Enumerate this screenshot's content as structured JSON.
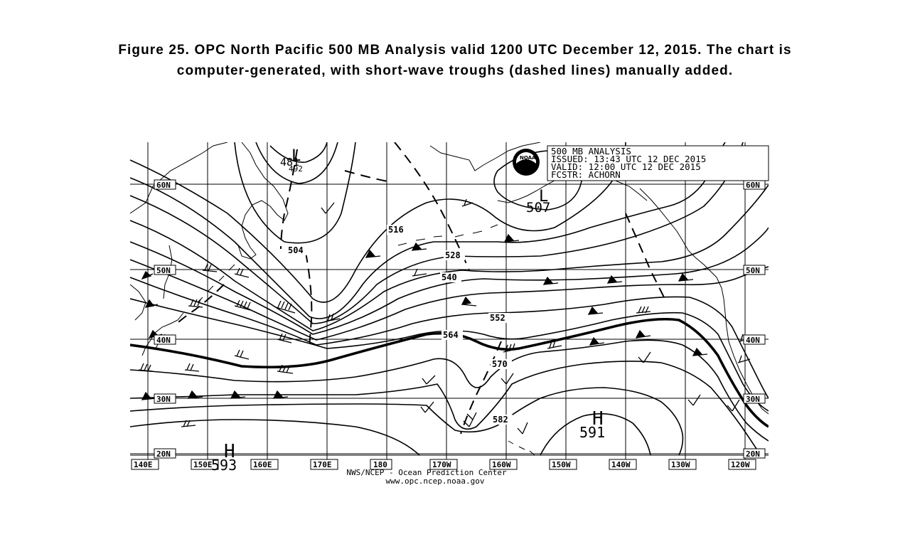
{
  "caption": {
    "line1": "Figure 25.  OPC North Pacific 500 MB Analysis valid 1200 UTC December 12, 2015.  The chart is",
    "line2": "computer-generated, with short-wave troughs (dashed lines) manually added."
  },
  "info_box": {
    "title": "500 MB ANALYSIS",
    "issued": "ISSUED:  13:43 UTC 12 DEC 2015",
    "valid": "VALID:   12:00 UTC 12 DEC 2015",
    "forecaster": "FCSTR:   ACHORN"
  },
  "logo_label": "NOAA",
  "lat_labels": {
    "n60": "60N",
    "n50": "50N",
    "n40": "40N",
    "n30": "30N",
    "n20": "20N"
  },
  "lon_labels": [
    "140E",
    "150E",
    "160E",
    "170E",
    "180",
    "170W",
    "160W",
    "150W",
    "140W",
    "130W",
    "120W"
  ],
  "contour_labels": [
    "504",
    "516",
    "528",
    "540",
    "552",
    "564",
    "570",
    "582"
  ],
  "centers": {
    "low_1": {
      "letter": "L",
      "value": "481",
      "sub": "492"
    },
    "low_2": {
      "letter": "L",
      "value": "507"
    },
    "high_1": {
      "letter": "H",
      "value": "593"
    },
    "high_2": {
      "letter": "H",
      "value": "591"
    }
  },
  "credit": {
    "line1": "NWS/NCEP - Ocean Prediction Center",
    "line2": "www.opc.ncep.noaa.gov"
  }
}
